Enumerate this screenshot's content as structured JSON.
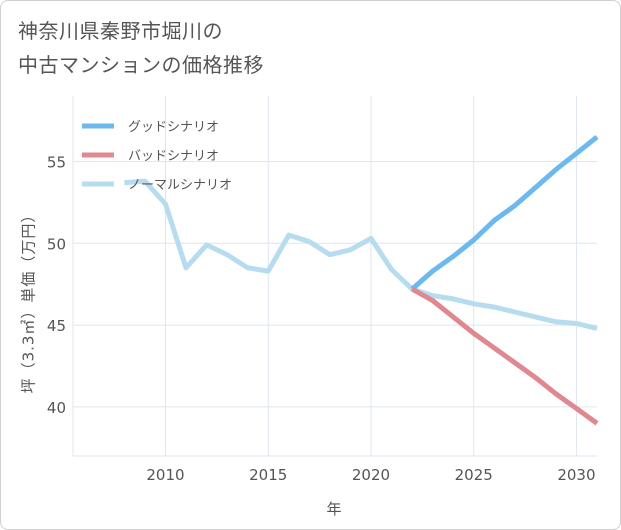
{
  "title_lines": [
    "神奈川県秦野市堀川の",
    "中古マンションの価格推移"
  ],
  "chart_data": {
    "type": "line",
    "title": "神奈川県秦野市堀川の中古マンションの価格推移",
    "xlabel": "年",
    "ylabel": "坪（3.3㎡）単価（万円）",
    "xlim": [
      2005.5,
      2031
    ],
    "ylim": [
      37,
      59
    ],
    "x_ticks": [
      2010,
      2015,
      2020,
      2025,
      2030
    ],
    "y_ticks": [
      40,
      45,
      50,
      55
    ],
    "grid": true,
    "legend_position": "top-left",
    "series": [
      {
        "name": "グッドシナリオ",
        "color": "#6bb9ee",
        "x": [
          2022,
          2023,
          2024,
          2025,
          2026,
          2027,
          2028,
          2029,
          2030,
          2031
        ],
        "values": [
          47.2,
          48.3,
          49.2,
          50.2,
          51.4,
          52.3,
          53.4,
          54.5,
          55.5,
          56.5
        ]
      },
      {
        "name": "バッドシナリオ",
        "color": "#e08890",
        "x": [
          2022,
          2023,
          2024,
          2025,
          2026,
          2027,
          2028,
          2029,
          2030,
          2031
        ],
        "values": [
          47.2,
          46.5,
          45.5,
          44.5,
          43.6,
          42.7,
          41.8,
          40.8,
          39.9,
          39.0
        ]
      },
      {
        "name": "ノーマルシナリオ",
        "color": "#b7dcef",
        "x": [
          2008,
          2009,
          2010,
          2011,
          2012,
          2013,
          2014,
          2015,
          2016,
          2017,
          2018,
          2019,
          2020,
          2021,
          2022,
          2023,
          2024,
          2025,
          2026,
          2027,
          2028,
          2029,
          2030,
          2031
        ],
        "values": [
          53.7,
          53.8,
          52.4,
          48.5,
          49.9,
          49.3,
          48.5,
          48.3,
          50.5,
          50.1,
          49.3,
          49.6,
          50.3,
          48.4,
          47.2,
          46.8,
          46.6,
          46.3,
          46.1,
          45.8,
          45.5,
          45.2,
          45.1,
          44.8
        ]
      }
    ]
  }
}
